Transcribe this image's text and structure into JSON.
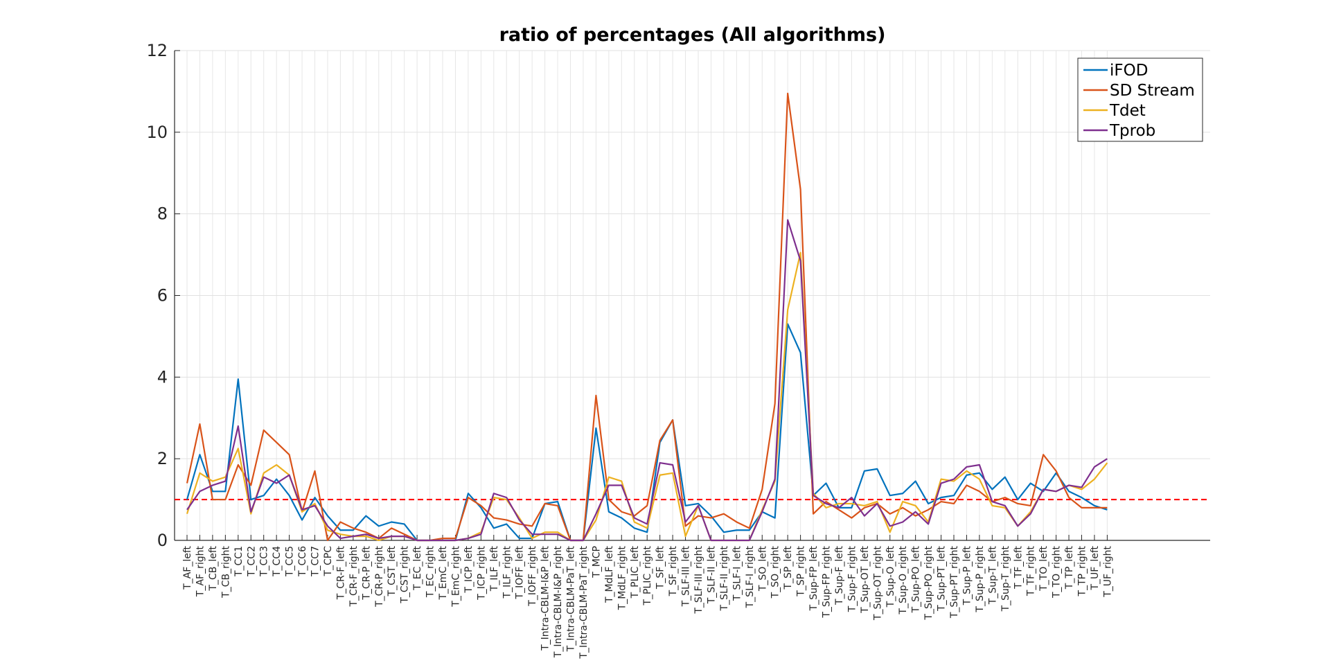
{
  "chart_data": {
    "type": "line",
    "title": "ratio of percentages (All algorithms)",
    "xlabel": "",
    "ylabel": "",
    "ylim": [
      0,
      12
    ],
    "yticks": [
      0,
      2,
      4,
      6,
      8,
      10,
      12
    ],
    "grid": true,
    "legend_position": "top-right",
    "categories": [
      "T_AF_left",
      "T_AF_right",
      "T_CB_left",
      "T_CB_right",
      "T_CC1",
      "T_CC2",
      "T_CC3",
      "T_CC4",
      "T_CC5",
      "T_CC6",
      "T_CC7",
      "T_CPC",
      "T_CR-F_left",
      "T_CR-F_right",
      "T_CR-P_left",
      "T_CR-P_right",
      "T_CST_left",
      "T_CST_right",
      "T_EC_left",
      "T_EC_right",
      "T_EmC_left",
      "T_EmC_right",
      "T_ICP_left",
      "T_ICP_right",
      "T_ILF_left",
      "T_ILF_right",
      "T_IOFF_left",
      "T_IOFF_right",
      "T_Intra-CBLM-I&P_left",
      "T_Intra-CBLM-I&P_right",
      "T_Intra-CBLM-PaT_left",
      "T_Intra-CBLM-PaT_right",
      "T_MCP",
      "T_MdLF_left",
      "T_MdLF_right",
      "T_PLIC_left",
      "T_PLIC_right",
      "T_SF_left",
      "T_SF_right",
      "T_SLF-III_left",
      "T_SLF-III_right",
      "T_SLF-II_left",
      "T_SLF-II_right",
      "T_SLF-I_left",
      "T_SLF-I_right",
      "T_SO_left",
      "T_SO_right",
      "T_SP_left",
      "T_SP_right",
      "T_Sup-FP_left",
      "T_Sup-FP_right",
      "T_Sup-F_left",
      "T_Sup-F_right",
      "T_Sup-OT_left",
      "T_Sup-OT_right",
      "T_Sup-O_left",
      "T_Sup-O_right",
      "T_Sup-PO_left",
      "T_Sup-PO_right",
      "T_Sup-PT_left",
      "T_Sup-PT_right",
      "T_Sup-P_left",
      "T_Sup-P_right",
      "T_Sup-T_left",
      "T_Sup-T_right",
      "T_TF_left",
      "T_TF_right",
      "T_TO_left",
      "T_TO_right",
      "T_TP_left",
      "T_TP_right",
      "T_UF_left",
      "T_UF_right"
    ],
    "xlim": [
      0,
      81
    ],
    "series": [
      {
        "name": "iFOD",
        "color": "#0072BD",
        "values": [
          1.0,
          2.1,
          1.2,
          1.2,
          3.95,
          1.0,
          1.1,
          1.5,
          1.1,
          0.5,
          1.05,
          0.6,
          0.25,
          0.25,
          0.6,
          0.35,
          0.45,
          0.4,
          0.0,
          0.0,
          0.0,
          0.0,
          1.15,
          0.8,
          0.3,
          0.4,
          0.05,
          0.05,
          0.9,
          0.95,
          0.0,
          0.0,
          2.75,
          0.7,
          0.55,
          0.3,
          0.2,
          2.4,
          2.95,
          0.85,
          0.9,
          0.6,
          0.2,
          0.25,
          0.25,
          0.7,
          0.55,
          5.3,
          4.6,
          1.1,
          1.4,
          0.8,
          0.8,
          1.7,
          1.75,
          1.1,
          1.15,
          1.45,
          0.9,
          1.05,
          1.1,
          1.6,
          1.65,
          1.25,
          1.55,
          1.0,
          1.4,
          1.2,
          1.65,
          1.2,
          1.05,
          0.85,
          0.75
        ]
      },
      {
        "name": "SD Stream",
        "color": "#D95319",
        "values": [
          1.4,
          2.85,
          1.0,
          1.0,
          1.85,
          1.35,
          2.7,
          2.4,
          2.1,
          0.7,
          1.7,
          0.0,
          0.45,
          0.3,
          0.2,
          0.05,
          0.3,
          0.15,
          0.0,
          0.0,
          0.05,
          0.05,
          1.05,
          0.85,
          0.55,
          0.5,
          0.4,
          0.35,
          0.9,
          0.85,
          0.0,
          0.0,
          3.55,
          1.0,
          0.7,
          0.6,
          0.85,
          2.45,
          2.95,
          0.35,
          0.6,
          0.55,
          0.65,
          0.45,
          0.3,
          1.25,
          3.35,
          10.95,
          8.6,
          0.65,
          0.95,
          0.75,
          0.55,
          0.8,
          0.9,
          0.65,
          0.8,
          0.6,
          0.75,
          0.95,
          0.9,
          1.35,
          1.2,
          0.95,
          1.05,
          0.9,
          0.85,
          2.1,
          1.7,
          1.05,
          0.8,
          0.8,
          0.8
        ]
      },
      {
        "name": "Tdet",
        "color": "#EDB120",
        "values": [
          0.65,
          1.65,
          1.45,
          1.55,
          2.25,
          0.65,
          1.65,
          1.85,
          1.6,
          0.7,
          0.9,
          0.25,
          0.15,
          0.1,
          0.1,
          0.0,
          0.1,
          0.1,
          0.0,
          0.0,
          0.0,
          0.0,
          0.05,
          0.2,
          1.05,
          1.0,
          0.55,
          0.05,
          0.2,
          0.2,
          0.0,
          0.0,
          0.5,
          1.55,
          1.45,
          0.45,
          0.3,
          1.6,
          1.65,
          0.1,
          0.85,
          0.0,
          0.0,
          0.0,
          0.0,
          0.75,
          1.45,
          5.65,
          7.05,
          1.15,
          0.8,
          0.9,
          0.9,
          0.85,
          0.95,
          0.2,
          0.95,
          0.85,
          0.45,
          1.5,
          1.45,
          1.7,
          1.5,
          0.85,
          0.8,
          0.35,
          0.7,
          1.25,
          1.2,
          1.35,
          1.25,
          1.5,
          1.9
        ]
      },
      {
        "name": "Tprob",
        "color": "#7E2F8E",
        "values": [
          0.75,
          1.2,
          1.35,
          1.45,
          2.8,
          0.7,
          1.55,
          1.4,
          1.6,
          0.75,
          0.85,
          0.35,
          0.05,
          0.1,
          0.15,
          0.05,
          0.1,
          0.1,
          0.0,
          0.0,
          0.0,
          0.0,
          0.05,
          0.15,
          1.15,
          1.05,
          0.5,
          0.15,
          0.15,
          0.15,
          0.0,
          0.0,
          0.65,
          1.35,
          1.35,
          0.55,
          0.4,
          1.9,
          1.85,
          0.45,
          0.85,
          0.0,
          0.0,
          0.0,
          0.0,
          0.7,
          1.5,
          7.85,
          6.85,
          1.1,
          0.9,
          0.8,
          1.05,
          0.6,
          0.9,
          0.35,
          0.45,
          0.7,
          0.4,
          1.4,
          1.5,
          1.8,
          1.85,
          0.95,
          0.85,
          0.35,
          0.65,
          1.25,
          1.2,
          1.35,
          1.3,
          1.8,
          2.0
        ]
      }
    ],
    "reference_line": {
      "y": 1,
      "color": "#FF0000",
      "style": "dashed"
    }
  }
}
